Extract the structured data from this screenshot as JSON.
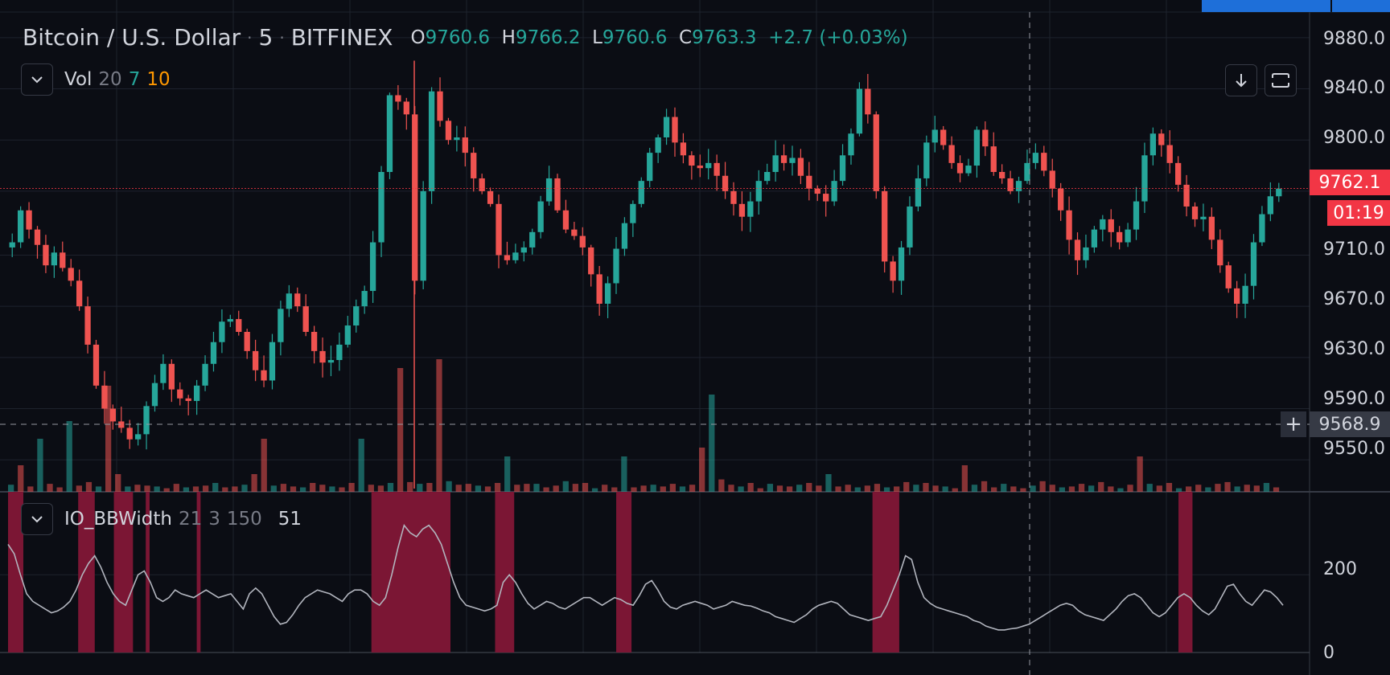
{
  "header": {
    "title": "Bitcoin / U.S. Dollar",
    "interval": "5",
    "exchange": "BITFINEX",
    "dot": "·",
    "open_key": "O",
    "open": "9760.6",
    "high_key": "H",
    "high": "9766.2",
    "low_key": "L",
    "low": "9760.6",
    "close_key": "C",
    "close": "9763.3",
    "change": "+2.7 (+0.03%)"
  },
  "volume_indicator": {
    "name": "Vol",
    "p1": "20",
    "p2": "7",
    "p3": "10"
  },
  "bbwidth_indicator": {
    "name": "IO_BBWidth",
    "p1": "21",
    "p2": "3",
    "p3": "150",
    "value": "51"
  },
  "icons": {
    "collapse": "chevron-down-icon",
    "download": "arrow-down-icon",
    "fullscreen": "fullscreen-icon",
    "crosshair_add": "plus-icon"
  },
  "colors": {
    "up": "#26a69a",
    "down": "#ef5350",
    "background": "#0b0d14",
    "grid": "#1e222d",
    "highlight": "#7b1634",
    "bbwidth_line": "#b2b5be",
    "price_tag": "#f23645",
    "accent_blue": "#1e6fd9"
  },
  "price_axis": {
    "labels": [
      "9880.0",
      "9840.0",
      "9800.0",
      "9710.0",
      "9670.0",
      "9630.0",
      "9590.0",
      "9550.0"
    ],
    "current_price": "9762.1",
    "countdown": "01:19",
    "crosshair_price": "9568.9"
  },
  "indicator_axis": {
    "labels": [
      "200",
      "0"
    ]
  },
  "chart_data": [
    {
      "type": "candlestick",
      "title": "Bitcoin / U.S. Dollar · 5 · BITFINEX",
      "series_close": [
        9720,
        9745,
        9730,
        9718,
        9702,
        9712,
        9700,
        9690,
        9670,
        9640,
        9608,
        9590,
        9580,
        9575,
        9566,
        9570,
        9592,
        9610,
        9625,
        9605,
        9598,
        9596,
        9608,
        9625,
        9642,
        9658,
        9660,
        9650,
        9635,
        9620,
        9612,
        9642,
        9668,
        9680,
        9670,
        9650,
        9635,
        9626,
        9628,
        9640,
        9655,
        9670,
        9682,
        9720,
        9775,
        9835,
        9830,
        9820,
        9690,
        9760,
        9838,
        9815,
        9800,
        9802,
        9790,
        9770,
        9760,
        9750,
        9710,
        9706,
        9712,
        9716,
        9728,
        9752,
        9770,
        9745,
        9730,
        9725,
        9716,
        9695,
        9672,
        9688,
        9715,
        9735,
        9750,
        9768,
        9790,
        9802,
        9818,
        9798,
        9788,
        9780,
        9778,
        9782,
        9772,
        9760,
        9750,
        9740,
        9752,
        9768,
        9775,
        9788,
        9782,
        9786,
        9772,
        9762,
        9758,
        9752,
        9768,
        9788,
        9805,
        9840,
        9820,
        9760,
        9705,
        9690,
        9716,
        9748,
        9770,
        9798,
        9808,
        9796,
        9782,
        9774,
        9780,
        9808,
        9795,
        9775,
        9770,
        9760,
        9768,
        9782,
        9790,
        9776,
        9762,
        9745,
        9722,
        9706,
        9716,
        9730,
        9738,
        9728,
        9720,
        9730,
        9752,
        9788,
        9805,
        9796,
        9782,
        9765,
        9748,
        9738,
        9740,
        9722,
        9702,
        9684,
        9672,
        9686,
        9720,
        9742,
        9756,
        9762
      ],
      "series_volume": [
        8,
        30,
        6,
        60,
        9,
        5,
        80,
        7,
        11,
        6,
        120,
        20,
        6,
        8,
        7,
        6,
        4,
        9,
        5,
        6,
        7,
        10,
        5,
        6,
        8,
        20,
        60,
        7,
        9,
        6,
        5,
        10,
        8,
        6,
        5,
        10,
        60,
        8,
        7,
        10,
        140,
        11,
        9,
        10,
        150,
        12,
        8,
        9,
        7,
        6,
        10,
        40,
        8,
        9,
        9,
        5,
        7,
        12,
        9,
        10,
        4,
        8,
        5,
        40,
        5,
        7,
        8,
        6,
        9,
        6,
        8,
        50,
        110,
        14,
        8,
        6,
        10,
        4,
        9,
        7,
        6,
        8,
        10,
        7,
        20,
        6,
        8,
        5,
        7,
        9,
        5,
        6,
        11,
        8,
        10,
        7,
        6,
        4,
        30,
        8,
        12,
        5,
        9,
        6,
        4,
        7,
        12,
        8,
        5,
        6,
        9,
        7,
        11,
        6,
        4,
        8,
        40,
        9,
        7,
        10,
        4,
        6,
        8,
        5,
        9,
        11,
        6,
        8,
        7,
        10,
        5
      ],
      "ylim": [
        9525,
        9900
      ]
    },
    {
      "type": "line",
      "title": "IO_BBWidth",
      "series_bbwidth": [
        280,
        255,
        200,
        150,
        130,
        120,
        110,
        100,
        105,
        115,
        130,
        160,
        200,
        230,
        250,
        220,
        180,
        150,
        130,
        120,
        160,
        200,
        210,
        180,
        140,
        130,
        140,
        160,
        150,
        145,
        140,
        150,
        160,
        150,
        140,
        145,
        150,
        130,
        110,
        150,
        165,
        150,
        120,
        90,
        70,
        75,
        95,
        120,
        140,
        150,
        160,
        155,
        150,
        140,
        130,
        150,
        160,
        160,
        150,
        130,
        120,
        140,
        200,
        270,
        330,
        310,
        300,
        320,
        330,
        310,
        280,
        230,
        180,
        140,
        120,
        115,
        110,
        105,
        110,
        120,
        180,
        200,
        180,
        150,
        125,
        110,
        120,
        130,
        125,
        115,
        110,
        120,
        130,
        140,
        140,
        130,
        120,
        130,
        140,
        135,
        125,
        120,
        145,
        175,
        185,
        160,
        130,
        115,
        110,
        120,
        125,
        130,
        125,
        120,
        110,
        115,
        120,
        130,
        125,
        120,
        118,
        112,
        105,
        100,
        90,
        85,
        80,
        75,
        85,
        95,
        110,
        120,
        125,
        130,
        125,
        110,
        95,
        90,
        85,
        80,
        85,
        90,
        120,
        160,
        200,
        250,
        240,
        180,
        140,
        125,
        115,
        110,
        105,
        100,
        95,
        90,
        80,
        75,
        65,
        60,
        55,
        55,
        58,
        60,
        65,
        70,
        80,
        90,
        100,
        110,
        120,
        125,
        120,
        105,
        95,
        90,
        85,
        80,
        95,
        110,
        130,
        145,
        150,
        140,
        120,
        100,
        90,
        100,
        120,
        140,
        150,
        140,
        120,
        105,
        95,
        110,
        140,
        170,
        175,
        150,
        130,
        120,
        140,
        160,
        155,
        140,
        120
      ],
      "highlight_ranges": [
        [
          0,
          0.012
        ],
        [
          0.055,
          0.068
        ],
        [
          0.083,
          0.098
        ],
        [
          0.108,
          0.111
        ],
        [
          0.148,
          0.151
        ],
        [
          0.285,
          0.347
        ],
        [
          0.382,
          0.397
        ],
        [
          0.477,
          0.489
        ],
        [
          0.678,
          0.699
        ],
        [
          0.918,
          0.929
        ]
      ],
      "ylim": [
        0,
        380
      ]
    }
  ]
}
